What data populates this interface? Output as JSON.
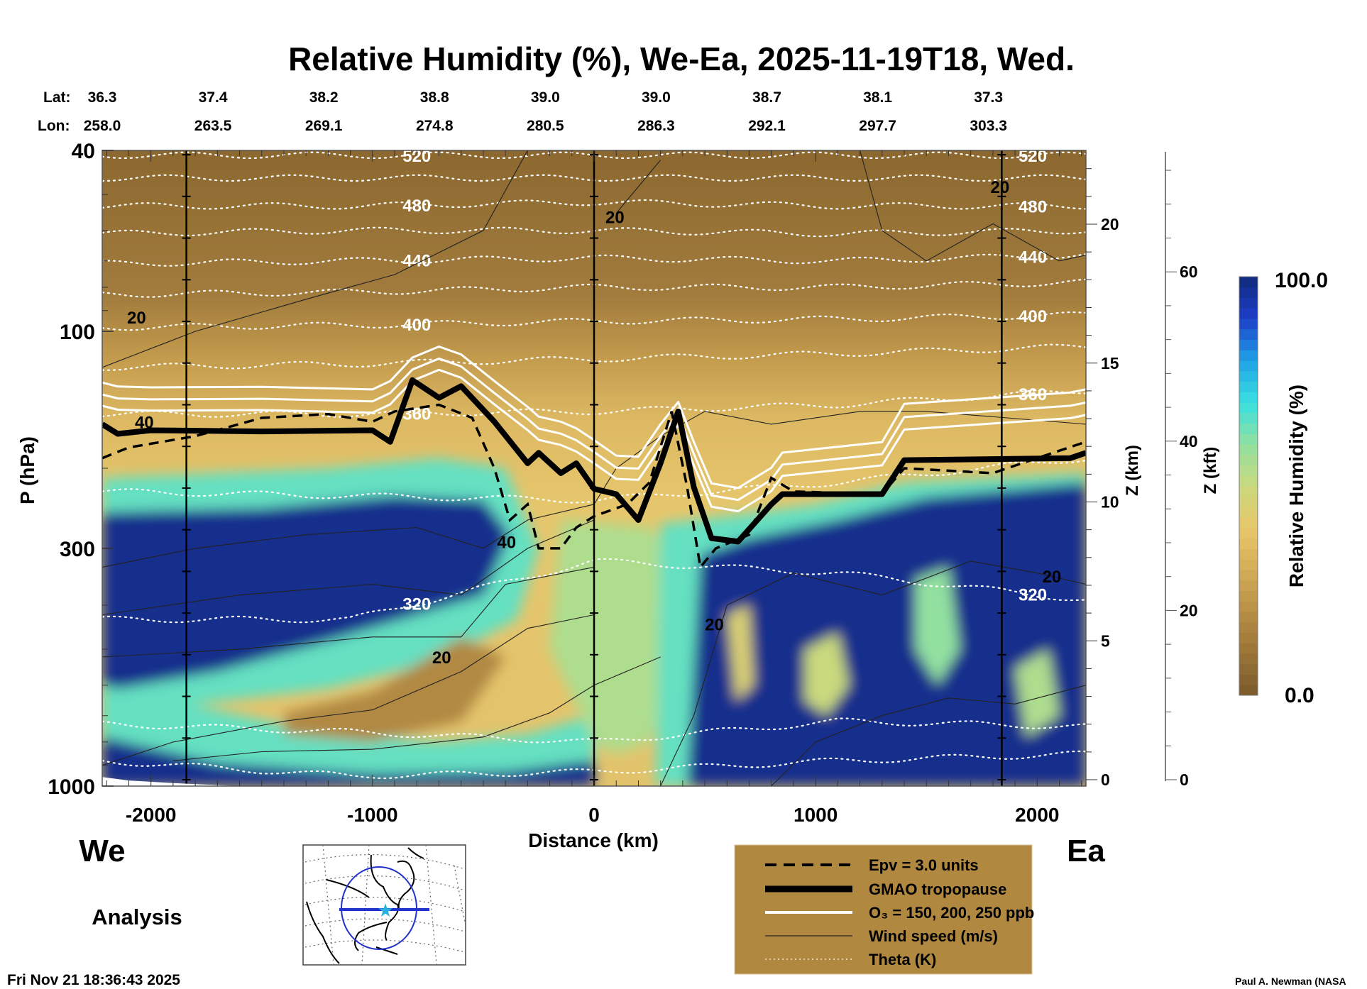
{
  "chart_data": {
    "type": "heatmap",
    "title": "Relative Humidity (%), We-Ea, 2025-11-19T18, Wed.",
    "xlabel": "Distance (km)",
    "ylabel": "P (hPa)",
    "y2label": "Z (km)",
    "y3label": "Z (kft)",
    "xlim": [
      -2220,
      2220
    ],
    "ylim_hpa": [
      1000,
      40
    ],
    "x_ticks": [
      -2000,
      -1000,
      0,
      1000,
      2000
    ],
    "x_tick_labels": [
      "-2000",
      "-1000",
      "0",
      "1000",
      "2000"
    ],
    "y_ticks": [
      40,
      100,
      300,
      1000
    ],
    "y_tick_labels": [
      "40",
      "100",
      "300",
      "1000"
    ],
    "zkm_ticks": [
      0,
      5,
      10,
      15,
      20
    ],
    "zkm_tick_labels": [
      "0",
      "5",
      "10",
      "15",
      "20"
    ],
    "zkft_ticks": [
      0,
      20,
      40,
      60
    ],
    "zkft_tick_labels": [
      "0",
      "20",
      "40",
      "60"
    ],
    "lat_label": "Lat:",
    "lon_label": "Lon:",
    "lat": [
      "36.3",
      "37.4",
      "38.2",
      "38.8",
      "39.0",
      "39.0",
      "38.7",
      "38.1",
      "37.3"
    ],
    "lon": [
      "258.0",
      "263.5",
      "269.1",
      "274.8",
      "280.5",
      "286.3",
      "292.1",
      "297.7",
      "303.3"
    ],
    "vertical_markers_km": [
      -1840,
      0,
      1840
    ],
    "colorbar": {
      "label": "Relative Humidity (%)",
      "min_label": "0.0",
      "max_label": "100.0",
      "range": [
        0,
        100
      ],
      "stops": [
        {
          "v": 0,
          "c": "#7b5b2a"
        },
        {
          "v": 10,
          "c": "#9a7436"
        },
        {
          "v": 20,
          "c": "#b78e45"
        },
        {
          "v": 30,
          "c": "#d4ad58"
        },
        {
          "v": 40,
          "c": "#e8c66a"
        },
        {
          "v": 50,
          "c": "#c9d97c"
        },
        {
          "v": 60,
          "c": "#92e0a0"
        },
        {
          "v": 70,
          "c": "#38e0e2"
        },
        {
          "v": 80,
          "c": "#1fa2e6"
        },
        {
          "v": 90,
          "c": "#1c3ecb"
        },
        {
          "v": 100,
          "c": "#102a7c"
        }
      ]
    },
    "rh_regions": [
      {
        "rh": 65,
        "pts": [
          [
            -2220,
            210
          ],
          [
            -1200,
            200
          ],
          [
            -700,
            190
          ],
          [
            -400,
            200
          ],
          [
            -250,
            300
          ],
          [
            -350,
            430
          ],
          [
            -700,
            530
          ],
          [
            -1200,
            610
          ],
          [
            -1800,
            660
          ],
          [
            -2220,
            700
          ]
        ]
      },
      {
        "rh": 98,
        "pts": [
          [
            -2220,
            250
          ],
          [
            -1500,
            245
          ],
          [
            -900,
            230
          ],
          [
            -500,
            235
          ],
          [
            -380,
            280
          ],
          [
            -500,
            380
          ],
          [
            -800,
            420
          ],
          [
            -1200,
            480
          ],
          [
            -1700,
            560
          ],
          [
            -2220,
            620
          ]
        ]
      },
      {
        "rh": 65,
        "pts": [
          [
            -2220,
            600
          ],
          [
            -1700,
            680
          ],
          [
            -1200,
            770
          ],
          [
            -700,
            800
          ],
          [
            -300,
            770
          ],
          [
            -100,
            720
          ],
          [
            0,
            700
          ],
          [
            0,
            1000
          ],
          [
            -2220,
            1000
          ]
        ]
      },
      {
        "rh": 98,
        "pts": [
          [
            -2220,
            780
          ],
          [
            -1700,
            890
          ],
          [
            -1000,
            940
          ],
          [
            -400,
            930
          ],
          [
            0,
            880
          ],
          [
            0,
            1000
          ],
          [
            -2220,
            1000
          ]
        ]
      },
      {
        "rh": 18,
        "pts": [
          [
            -1400,
            690
          ],
          [
            -1000,
            620
          ],
          [
            -600,
            470
          ],
          [
            -400,
            520
          ],
          [
            -600,
            720
          ],
          [
            -1000,
            800
          ],
          [
            -1400,
            770
          ]
        ]
      },
      {
        "rh": 55,
        "pts": [
          [
            -150,
            260
          ],
          [
            250,
            270
          ],
          [
            400,
            330
          ],
          [
            350,
            600
          ],
          [
            250,
            800
          ],
          [
            100,
            850
          ],
          [
            0,
            800
          ],
          [
            -200,
            500
          ]
        ]
      },
      {
        "rh": 65,
        "pts": [
          [
            300,
            265
          ],
          [
            600,
            255
          ],
          [
            1000,
            240
          ],
          [
            1400,
            215
          ],
          [
            2220,
            205
          ],
          [
            2220,
            1000
          ],
          [
            280,
            1000
          ]
        ]
      },
      {
        "rh": 98,
        "pts": [
          [
            480,
            310
          ],
          [
            700,
            285
          ],
          [
            1100,
            260
          ],
          [
            1500,
            232
          ],
          [
            2220,
            215
          ],
          [
            2220,
            1000
          ],
          [
            420,
            1000
          ]
        ]
      },
      {
        "rh": 50,
        "pts": [
          [
            950,
            500
          ],
          [
            1100,
            460
          ],
          [
            1150,
            600
          ],
          [
            1050,
            700
          ],
          [
            950,
            650
          ]
        ]
      },
      {
        "rh": 60,
        "pts": [
          [
            1450,
            350
          ],
          [
            1600,
            330
          ],
          [
            1650,
            500
          ],
          [
            1550,
            600
          ],
          [
            1450,
            500
          ]
        ]
      },
      {
        "rh": 55,
        "pts": [
          [
            1900,
            550
          ],
          [
            2050,
            500
          ],
          [
            2100,
            700
          ],
          [
            1950,
            780
          ]
        ]
      },
      {
        "rh": 45,
        "pts": [
          [
            600,
            420
          ],
          [
            700,
            400
          ],
          [
            720,
            600
          ],
          [
            640,
            650
          ]
        ]
      }
    ],
    "tropopause": {
      "label": "GMAO tropopause",
      "pts": [
        [
          -2220,
          160
        ],
        [
          -2150,
          168
        ],
        [
          -2000,
          165
        ],
        [
          -1500,
          166
        ],
        [
          -1000,
          165
        ],
        [
          -920,
          175
        ],
        [
          -820,
          128
        ],
        [
          -700,
          140
        ],
        [
          -600,
          132
        ],
        [
          -450,
          158
        ],
        [
          -300,
          195
        ],
        [
          -250,
          185
        ],
        [
          -150,
          205
        ],
        [
          -80,
          195
        ],
        [
          0,
          222
        ],
        [
          100,
          228
        ],
        [
          200,
          260
        ],
        [
          300,
          195
        ],
        [
          380,
          150
        ],
        [
          450,
          220
        ],
        [
          530,
          285
        ],
        [
          650,
          290
        ],
        [
          800,
          240
        ],
        [
          850,
          228
        ],
        [
          1300,
          228
        ],
        [
          1400,
          192
        ],
        [
          2150,
          190
        ],
        [
          2220,
          185
        ]
      ]
    },
    "epv": {
      "label": "Epv = 3.0 units",
      "pts": [
        [
          -2220,
          190
        ],
        [
          -2100,
          180
        ],
        [
          -1800,
          170
        ],
        [
          -1500,
          155
        ],
        [
          -1200,
          152
        ],
        [
          -1000,
          158
        ],
        [
          -900,
          150
        ],
        [
          -700,
          145
        ],
        [
          -550,
          155
        ],
        [
          -450,
          200
        ],
        [
          -380,
          260
        ],
        [
          -300,
          240
        ],
        [
          -250,
          300
        ],
        [
          -150,
          300
        ],
        [
          -80,
          270
        ],
        [
          0,
          255
        ],
        [
          150,
          240
        ],
        [
          250,
          215
        ],
        [
          350,
          150
        ],
        [
          420,
          220
        ],
        [
          480,
          330
        ],
        [
          550,
          300
        ],
        [
          700,
          280
        ],
        [
          800,
          210
        ],
        [
          900,
          225
        ],
        [
          1300,
          228
        ],
        [
          1400,
          200
        ],
        [
          1800,
          205
        ],
        [
          2000,
          190
        ],
        [
          2220,
          175
        ]
      ]
    },
    "o3": {
      "label": "O₃ = 150, 200, 250 ppb",
      "levels_ppb": [
        150,
        200,
        250
      ]
    },
    "wind": {
      "label": "Wind speed (m/s)",
      "lines": [
        [
          [
            -2220,
            120
          ],
          [
            -1800,
            100
          ],
          [
            -1300,
            85
          ],
          [
            -900,
            75
          ],
          [
            -500,
            60
          ],
          [
            -300,
            40
          ]
        ],
        [
          [
            -2220,
            330
          ],
          [
            -1800,
            300
          ],
          [
            -1300,
            280
          ],
          [
            -800,
            270
          ],
          [
            -500,
            300
          ],
          [
            -300,
            260
          ],
          [
            0,
            240
          ]
        ],
        [
          [
            -2220,
            420
          ],
          [
            -1600,
            380
          ],
          [
            -1000,
            360
          ],
          [
            -600,
            380
          ],
          [
            -300,
            300
          ],
          [
            0,
            260
          ]
        ],
        [
          [
            -2220,
            520
          ],
          [
            -1600,
            500
          ],
          [
            -1000,
            470
          ],
          [
            -600,
            470
          ],
          [
            -400,
            360
          ],
          [
            0,
            330
          ]
        ],
        [
          [
            -2220,
            900
          ],
          [
            -1900,
            800
          ],
          [
            -1400,
            720
          ],
          [
            -1000,
            680
          ],
          [
            -600,
            560
          ],
          [
            -300,
            450
          ],
          [
            0,
            420
          ]
        ],
        [
          [
            -1900,
            880
          ],
          [
            -1500,
            840
          ],
          [
            -1000,
            830
          ],
          [
            -500,
            780
          ],
          [
            -200,
            690
          ],
          [
            0,
            600
          ],
          [
            300,
            520
          ]
        ],
        [
          [
            0,
            240
          ],
          [
            100,
            200
          ],
          [
            300,
            170
          ],
          [
            500,
            150
          ],
          [
            800,
            160
          ],
          [
            1200,
            150
          ],
          [
            1500,
            150
          ],
          [
            2220,
            160
          ]
        ],
        [
          [
            300,
            1000
          ],
          [
            450,
            700
          ],
          [
            600,
            400
          ],
          [
            900,
            340
          ],
          [
            1300,
            380
          ],
          [
            1700,
            320
          ],
          [
            2000,
            340
          ],
          [
            2220,
            360
          ]
        ],
        [
          [
            800,
            1000
          ],
          [
            1000,
            800
          ],
          [
            1300,
            700
          ],
          [
            1600,
            640
          ],
          [
            1900,
            660
          ],
          [
            2220,
            600
          ]
        ],
        [
          [
            1200,
            40
          ],
          [
            1300,
            60
          ],
          [
            1500,
            70
          ],
          [
            1800,
            58
          ],
          [
            2100,
            70
          ],
          [
            2220,
            68
          ]
        ],
        [
          [
            100,
            55
          ],
          [
            300,
            42
          ]
        ]
      ],
      "labels": [
        {
          "text": "20",
          "x": -2065,
          "p": 93
        },
        {
          "text": "40",
          "x": -2030,
          "p": 158
        },
        {
          "text": "20",
          "x": 94,
          "p": 56
        },
        {
          "text": "40",
          "x": -395,
          "p": 290
        },
        {
          "text": "20",
          "x": -688,
          "p": 520
        },
        {
          "text": "20",
          "x": 543,
          "p": 440
        },
        {
          "text": "20",
          "x": 2066,
          "p": 345
        },
        {
          "text": "20",
          "x": 1832,
          "p": 48
        }
      ]
    },
    "theta": {
      "label": "Theta (K)",
      "x_nodes": [
        -2220,
        -1100,
        0,
        1100,
        2220
      ],
      "lines": [
        {
          "k": 520,
          "p": [
            41,
            41,
            41,
            41,
            41
          ],
          "label": "520"
        },
        {
          "k": 500,
          "p": [
            46,
            46,
            46,
            46,
            46
          ],
          "label": ""
        },
        {
          "k": 480,
          "p": [
            53,
            53,
            52,
            53,
            53
          ],
          "label": "480"
        },
        {
          "k": 460,
          "p": [
            61,
            60,
            60,
            61,
            60
          ],
          "label": ""
        },
        {
          "k": 440,
          "p": [
            71,
            70,
            69,
            70,
            68
          ],
          "label": "440"
        },
        {
          "k": 420,
          "p": [
            83,
            82,
            80,
            80,
            78
          ],
          "label": ""
        },
        {
          "k": 400,
          "p": [
            98,
            97,
            95,
            94,
            92
          ],
          "label": "400"
        },
        {
          "k": 380,
          "p": [
            120,
            118,
            115,
            112,
            108
          ],
          "label": ""
        },
        {
          "k": 360,
          "p": [
            152,
            152,
            150,
            145,
            135
          ],
          "label": "360"
        },
        {
          "k": 340,
          "p": [
            225,
            230,
            235,
            215,
            190
          ],
          "label": ""
        },
        {
          "k": 320,
          "p": [
            430,
            430,
            320,
            340,
            390
          ],
          "label": "320"
        },
        {
          "k": 300,
          "p": [
            730,
            760,
            800,
            720,
            740
          ],
          "label": ""
        },
        {
          "k": 290,
          "p": [
            880,
            950,
            930,
            880,
            850
          ],
          "label": ""
        }
      ],
      "label_x_west": -800,
      "label_x_east": 1980
    }
  },
  "labels": {
    "west": "We",
    "east": "Ea",
    "analysis": "Analysis",
    "timestamp": "Fri Nov 21 18:36:43 2025",
    "credit": "Paul A. Newman (NASA"
  },
  "legend": {
    "items": [
      {
        "label": "Epv = 3.0 units",
        "style": "dashed"
      },
      {
        "label": "GMAO tropopause",
        "style": "thick"
      },
      {
        "label": "O₃ = 150, 200, 250 ppb",
        "style": "white"
      },
      {
        "label": "Wind speed (m/s)",
        "style": "thin"
      },
      {
        "label": "Theta (K)",
        "style": "dotted"
      }
    ],
    "background": "#b0883f"
  }
}
